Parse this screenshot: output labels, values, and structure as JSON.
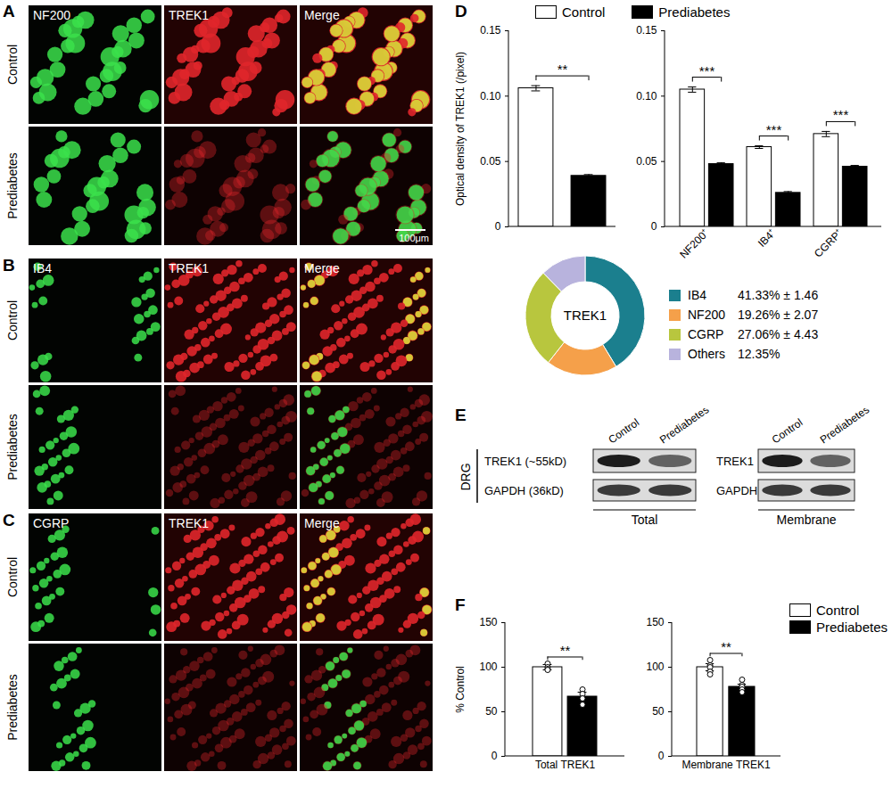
{
  "images": [
    {
      "panel": "A",
      "channels": [
        "NF200",
        "TREK1",
        "Merge"
      ],
      "rows": [
        "Control",
        "Prediabetes"
      ],
      "scale_bar": "100μm"
    },
    {
      "panel": "B",
      "channels": [
        "IB4",
        "TREK1",
        "Merge"
      ],
      "rows": [
        "Control",
        "Prediabetes"
      ]
    },
    {
      "panel": "C",
      "channels": [
        "CGRP",
        "TREK1",
        "Merge"
      ],
      "rows": [
        "Control",
        "Prediabetes"
      ]
    }
  ],
  "blot": {
    "panel": "E",
    "tissue": "DRG",
    "groups": [
      {
        "name": "Total",
        "lanes": [
          "Control",
          "Prediabetes"
        ],
        "bands": [
          "TREK1 (~55kD)",
          "GAPDH (36kD)"
        ]
      },
      {
        "name": "Membrane",
        "lanes": [
          "Control",
          "Prediabetes"
        ],
        "bands": [
          "TREK1",
          "GAPDH"
        ]
      }
    ]
  },
  "chart_data": [
    {
      "panel": "D",
      "type": "bar",
      "ylabel": "Optical density of TREK1 (/pixel)",
      "categories": [
        null
      ],
      "series": [
        {
          "name": "Control",
          "color": "#ffffff",
          "values": [
            0.106
          ],
          "errors": [
            0.002
          ]
        },
        {
          "name": "Prediabetes",
          "color": "#000000",
          "values": [
            0.039
          ],
          "errors": [
            0.001
          ]
        }
      ],
      "significance": [
        "**"
      ],
      "ylim": [
        0,
        0.15
      ],
      "yticks": [
        0,
        0.05,
        {
          "value": 0.1,
          "label": "0.10"
        },
        0.15
      ],
      "legend": "top"
    },
    {
      "panel": "D",
      "type": "bar",
      "categories": [
        "NF200⁺",
        "IB4⁺",
        "CGRP⁺"
      ],
      "series": [
        {
          "name": "Control",
          "color": "#ffffff",
          "values": [
            0.105,
            0.061,
            0.071
          ],
          "errors": [
            0.002,
            0.001,
            0.002
          ]
        },
        {
          "name": "Prediabetes",
          "color": "#000000",
          "values": [
            0.048,
            0.026,
            0.046
          ],
          "errors": [
            0.001,
            0.001,
            0.001
          ]
        }
      ],
      "significance": [
        "***",
        "***",
        "***"
      ],
      "ylim": [
        0,
        0.15
      ],
      "yticks": [
        0,
        0.05,
        {
          "value": 0.1,
          "label": "0.10"
        },
        0.15
      ]
    },
    {
      "panel": "D",
      "type": "pie",
      "center_label": "TREK1",
      "categories": [
        "IB4",
        "NF200",
        "CGRP",
        "Others"
      ],
      "values": [
        41.33,
        19.26,
        27.06,
        12.35
      ],
      "value_labels": [
        "41.33% ± 1.46",
        "19.26% ± 2.07",
        "27.06% ± 4.43",
        "12.35%"
      ],
      "colors": [
        "#1b7f8e",
        "#f5a04a",
        "#b8c63e",
        "#b8b3dd"
      ],
      "legend": "right"
    },
    {
      "panel": "F",
      "type": "bar",
      "ylabel": "% Control",
      "categories": [
        "Total TREK1"
      ],
      "series": [
        {
          "name": "Control",
          "color": "#ffffff",
          "values": [
            100
          ],
          "errors": [
            3
          ],
          "points": [
            [
              104,
              100,
              98,
              97
            ]
          ]
        },
        {
          "name": "Prediabetes",
          "color": "#000000",
          "values": [
            67
          ],
          "errors": [
            5
          ],
          "points": [
            [
              75,
              70,
              65,
              58
            ]
          ]
        }
      ],
      "significance": [
        "**"
      ],
      "ylim": [
        0,
        150
      ],
      "yticks": [
        0,
        50,
        100,
        150
      ]
    },
    {
      "panel": "F",
      "type": "bar",
      "categories": [
        "Membrane TREK1"
      ],
      "series": [
        {
          "name": "Control",
          "color": "#ffffff",
          "values": [
            100
          ],
          "errors": [
            4
          ],
          "points": [
            [
              108,
              102,
              100,
              95,
              92
            ]
          ]
        },
        {
          "name": "Prediabetes",
          "color": "#000000",
          "values": [
            78
          ],
          "errors": [
            3
          ],
          "points": [
            [
              86,
              80,
              78,
              75,
              72
            ]
          ]
        }
      ],
      "significance": [
        "**"
      ],
      "ylim": [
        0,
        150
      ],
      "yticks": [
        0,
        50,
        100,
        150
      ],
      "legend": "top-right"
    }
  ]
}
